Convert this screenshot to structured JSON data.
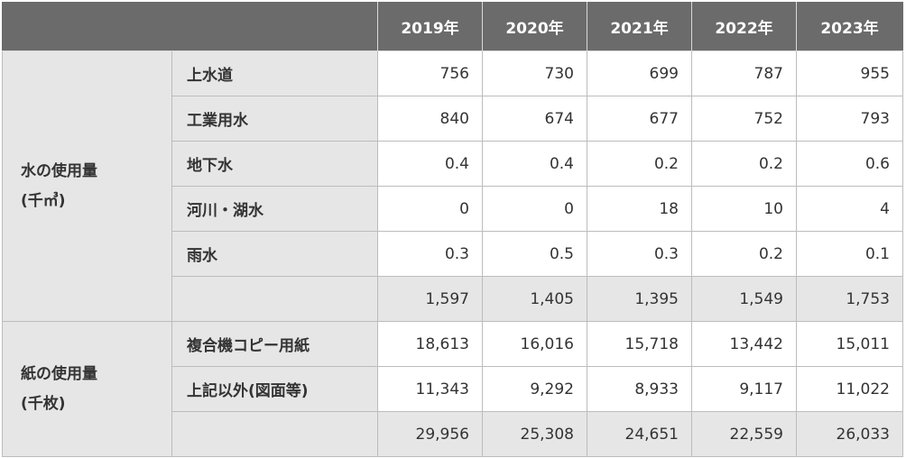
{
  "header": {
    "years": [
      "2019年",
      "2020年",
      "2021年",
      "2022年",
      "2023年"
    ]
  },
  "water": {
    "group_label_line1": "水の使用量",
    "group_label_line2": "(千㎥)",
    "rows": [
      {
        "label": "上水道",
        "values": [
          "756",
          "730",
          "699",
          "787",
          "955"
        ]
      },
      {
        "label": "工業用水",
        "values": [
          "840",
          "674",
          "677",
          "752",
          "793"
        ]
      },
      {
        "label": "地下水",
        "values": [
          "0.4",
          "0.4",
          "0.2",
          "0.2",
          "0.6"
        ]
      },
      {
        "label": "河川・湖水",
        "values": [
          "0",
          "0",
          "18",
          "10",
          "4"
        ]
      },
      {
        "label": "雨水",
        "values": [
          "0.3",
          "0.5",
          "0.3",
          "0.2",
          "0.1"
        ]
      }
    ],
    "totals": [
      "1,597",
      "1,405",
      "1,395",
      "1,549",
      "1,753"
    ]
  },
  "paper": {
    "group_label_line1": "紙の使用量",
    "group_label_line2": "(千枚)",
    "rows": [
      {
        "label": "複合機コピー用紙",
        "values": [
          "18,613",
          "16,016",
          "15,718",
          "13,442",
          "15,011"
        ]
      },
      {
        "label": "上記以外(図面等)",
        "values": [
          "11,343",
          "9,292",
          "8,933",
          "9,117",
          "11,022"
        ]
      }
    ],
    "totals": [
      "29,956",
      "25,308",
      "24,651",
      "22,559",
      "26,033"
    ]
  }
}
